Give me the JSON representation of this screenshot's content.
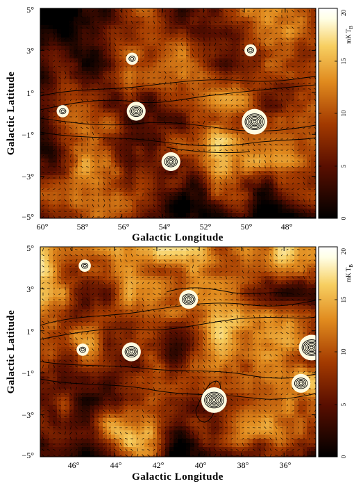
{
  "chart_data": [
    {
      "type": "heatmap",
      "panel": "top",
      "xlabel": "Galactic Longitude",
      "ylabel": "Galactic Latitude",
      "xlim": [
        60,
        46.5
      ],
      "ylim": [
        -5,
        5
      ],
      "x_ticks": [
        60,
        58,
        56,
        54,
        52,
        50,
        48
      ],
      "x_tick_labels": [
        "60°",
        "58°",
        "56°",
        "54°",
        "52°",
        "50°",
        "48°"
      ],
      "y_ticks": [
        -5,
        -3,
        -1,
        1,
        3,
        5
      ],
      "y_tick_labels": [
        "−5°",
        "−3°",
        "−1°",
        "1°",
        "3°",
        "5°"
      ],
      "colorbar": {
        "label": "mK T",
        "label_subscript": "B",
        "range": [
          0,
          20
        ],
        "ticks": [
          0,
          5,
          10,
          15,
          20
        ],
        "tick_labels": [
          "0",
          "5",
          "10",
          "15",
          "20"
        ]
      },
      "bright_sources": [
        {
          "l": 49.5,
          "b": -0.4,
          "level": "strong"
        },
        {
          "l": 53.6,
          "b": -2.3,
          "level": "medium"
        },
        {
          "l": 55.3,
          "b": 0.1,
          "level": "medium"
        },
        {
          "l": 58.9,
          "b": 0.1,
          "level": "weak"
        },
        {
          "l": 55.5,
          "b": 2.6,
          "level": "weak"
        },
        {
          "l": 49.7,
          "b": 3.0,
          "level": "weak"
        }
      ]
    },
    {
      "type": "heatmap",
      "panel": "bottom",
      "xlabel": "Galactic Longitude",
      "ylabel": "Galactic Latitude",
      "xlim": [
        47.5,
        34.5
      ],
      "ylim": [
        -5,
        5
      ],
      "x_ticks": [
        46,
        44,
        42,
        40,
        38,
        36
      ],
      "x_tick_labels": [
        "46°",
        "44°",
        "42°",
        "40°",
        "38°",
        "36°"
      ],
      "y_ticks": [
        -5,
        -3,
        -1,
        1,
        3,
        5
      ],
      "y_tick_labels": [
        "−5°",
        "−3°",
        "−1°",
        "1°",
        "3°",
        "5°"
      ],
      "colorbar": {
        "label": "mK T",
        "label_subscript": "B",
        "range": [
          0,
          20
        ],
        "ticks": [
          0,
          5,
          10,
          15,
          20
        ],
        "tick_labels": [
          "0",
          "5",
          "10",
          "15",
          "20"
        ]
      },
      "bright_sources": [
        {
          "l": 39.3,
          "b": -2.3,
          "level": "strong"
        },
        {
          "l": 40.5,
          "b": 2.5,
          "level": "medium"
        },
        {
          "l": 43.2,
          "b": 0.0,
          "level": "medium"
        },
        {
          "l": 35.2,
          "b": -1.5,
          "level": "medium"
        },
        {
          "l": 34.7,
          "b": 0.2,
          "level": "strong"
        },
        {
          "l": 45.5,
          "b": 0.1,
          "level": "weak"
        },
        {
          "l": 45.4,
          "b": 4.1,
          "level": "weak"
        }
      ]
    }
  ],
  "colors": {
    "colormap": [
      "#000000",
      "#5a0f00",
      "#a33a00",
      "#e08a1e",
      "#f7cf61",
      "#ffffe6",
      "#ffffff"
    ]
  }
}
